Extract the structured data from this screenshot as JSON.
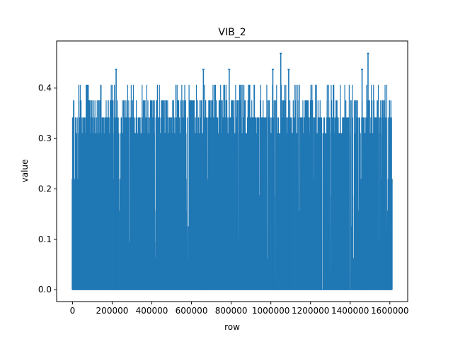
{
  "chart_data": {
    "type": "line",
    "title": "VIB_2",
    "xlabel": "row",
    "ylabel": "value",
    "xlim": [
      -80000,
      1690000
    ],
    "ylim": [
      -0.0235,
      0.4935
    ],
    "x_ticks": [
      0,
      200000,
      400000,
      600000,
      800000,
      1000000,
      1200000,
      1400000,
      1600000
    ],
    "x_tick_labels": [
      "0",
      "200000",
      "400000",
      "600000",
      "800000",
      "1000000",
      "1200000",
      "1400000",
      "1600000"
    ],
    "y_ticks": [
      0.0,
      0.1,
      0.2,
      0.3,
      0.4
    ],
    "y_tick_labels": [
      "0.0",
      "0.1",
      "0.2",
      "0.3",
      "0.4"
    ],
    "grid": false,
    "legend": false,
    "series": [
      {
        "name": "VIB_2",
        "color": "#1f77b4",
        "x_start": 0,
        "x_end": 1610000,
        "baseline_value": 0.0,
        "typical_high_value": 0.31,
        "peak_values": [
          {
            "x": 220000,
            "value": 0.437
          },
          {
            "x": 660000,
            "value": 0.437
          },
          {
            "x": 790000,
            "value": 0.437
          },
          {
            "x": 1010000,
            "value": 0.437
          },
          {
            "x": 1050000,
            "value": 0.469
          },
          {
            "x": 1090000,
            "value": 0.437
          },
          {
            "x": 1460000,
            "value": 0.437
          },
          {
            "x": 1490000,
            "value": 0.469
          }
        ],
        "value_levels": [
          0.0,
          0.031,
          0.062,
          0.094,
          0.125,
          0.156,
          0.187,
          0.219,
          0.25,
          0.281,
          0.312,
          0.344,
          0.375,
          0.406,
          0.437,
          0.469
        ]
      }
    ]
  }
}
